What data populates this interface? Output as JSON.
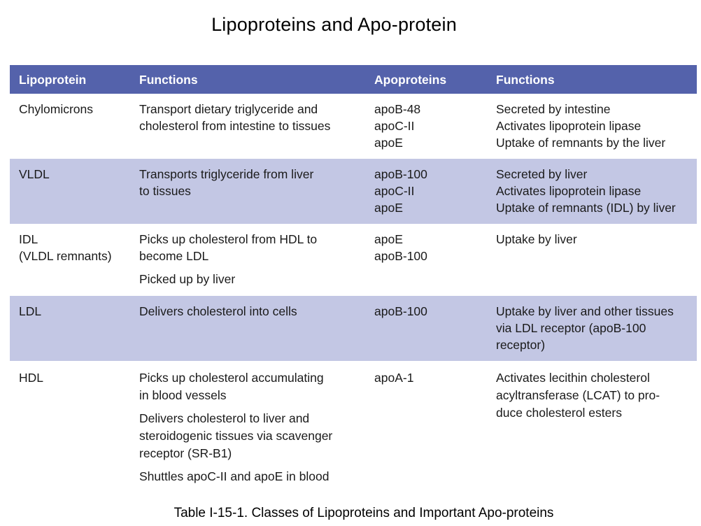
{
  "title": "Lipoproteins and Apo-protein",
  "table": {
    "headers": [
      "Lipoprotein",
      "Functions",
      "Apoproteins",
      "Functions"
    ],
    "rows": [
      {
        "lipoprotein": "Chylomicrons",
        "functions": [
          "Transport dietary triglyceride and\ncholesterol from intestine to tissues"
        ],
        "apoproteins": "apoB-48\napoC-II\napoE",
        "apo_functions": "Secreted by intestine\nActivates lipoprotein lipase\nUptake of remnants by the liver"
      },
      {
        "lipoprotein": "VLDL",
        "functions": [
          "Transports triglyceride from liver\nto tissues"
        ],
        "apoproteins": "apoB-100\napoC-II\napoE",
        "apo_functions": "Secreted by liver\nActivates lipoprotein lipase\nUptake of remnants (IDL) by liver"
      },
      {
        "lipoprotein": "IDL\n(VLDL remnants)",
        "functions": [
          "Picks up cholesterol from HDL to\nbecome LDL",
          "Picked up by liver"
        ],
        "apoproteins": "apoE\napoB-100",
        "apo_functions": "Uptake by liver"
      },
      {
        "lipoprotein": "LDL",
        "functions": [
          "Delivers cholesterol into cells"
        ],
        "apoproteins": "apoB-100",
        "apo_functions": "Uptake by liver and other tissues\nvia LDL receptor (apoB-100\nreceptor)"
      },
      {
        "lipoprotein": "HDL",
        "functions": [
          "Picks up cholesterol accumulating\nin blood vessels",
          "Delivers cholesterol to liver and\nsteroidogenic tissues via scavenger\nreceptor (SR-B1)",
          "Shuttles apoC-II and apoE in blood"
        ],
        "apoproteins": "apoA-1",
        "apo_functions": "Activates lecithin cholesterol\nacyltransferase (LCAT) to pro-\nduce cholesterol esters"
      }
    ]
  },
  "caption": "Table I-15-1. Classes of Lipoproteins and Important Apo-proteins",
  "colors": {
    "header_bg": "#5462ab",
    "band_bg": "#c3c7e4",
    "header_text": "#ffffff"
  }
}
